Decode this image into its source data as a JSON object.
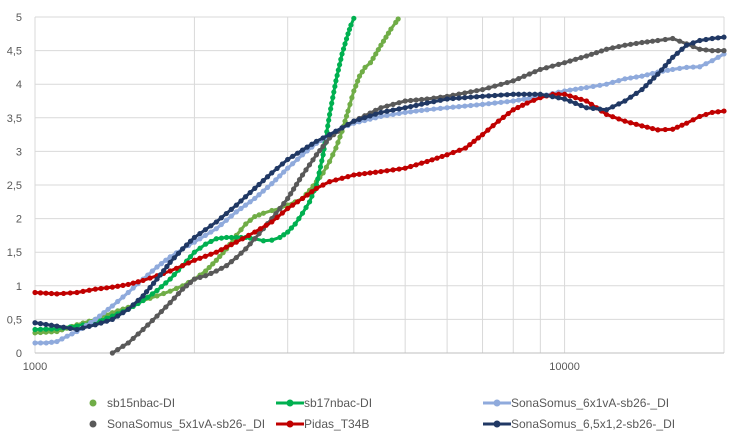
{
  "chart_data": {
    "type": "line",
    "title": "",
    "xlabel": "",
    "ylabel": "",
    "x_scale": "log",
    "xlim": [
      1000,
      20000
    ],
    "ylim": [
      0,
      5
    ],
    "grid": true,
    "legend_position": "bottom",
    "x_tick_labels": [
      {
        "value": 1000,
        "label": "1000"
      },
      {
        "value": 10000,
        "label": "10000"
      }
    ],
    "x_gridlines": [
      1000,
      2000,
      3000,
      4000,
      5000,
      6000,
      7000,
      8000,
      9000,
      10000,
      20000
    ],
    "y_ticks": [
      {
        "value": 0,
        "label": "0"
      },
      {
        "value": 0.5,
        "label": "0,5"
      },
      {
        "value": 1,
        "label": "1"
      },
      {
        "value": 1.5,
        "label": "1,5"
      },
      {
        "value": 2,
        "label": "2"
      },
      {
        "value": 2.5,
        "label": "2,5"
      },
      {
        "value": 3,
        "label": "3"
      },
      {
        "value": 3.5,
        "label": "3,5"
      },
      {
        "value": 4,
        "label": "4"
      },
      {
        "value": 4.5,
        "label": "4,5"
      },
      {
        "value": 5,
        "label": "5"
      }
    ],
    "series": [
      {
        "name": "sb15nbac-DI",
        "color": "#70ad47",
        "marker": "dot",
        "points": [
          [
            1000,
            0.3
          ],
          [
            1100,
            0.32
          ],
          [
            1200,
            0.42
          ],
          [
            1300,
            0.5
          ],
          [
            1400,
            0.6
          ],
          [
            1500,
            0.68
          ],
          [
            1600,
            0.78
          ],
          [
            1700,
            0.85
          ],
          [
            1800,
            0.92
          ],
          [
            1900,
            1.0
          ],
          [
            2000,
            1.1
          ],
          [
            2100,
            1.22
          ],
          [
            2200,
            1.38
          ],
          [
            2300,
            1.55
          ],
          [
            2400,
            1.75
          ],
          [
            2500,
            1.92
          ],
          [
            2600,
            2.03
          ],
          [
            2700,
            2.08
          ],
          [
            2800,
            2.12
          ],
          [
            2900,
            2.15
          ],
          [
            3000,
            2.2
          ],
          [
            3100,
            2.25
          ],
          [
            3200,
            2.3
          ],
          [
            3300,
            2.42
          ],
          [
            3400,
            2.55
          ],
          [
            3500,
            2.68
          ],
          [
            3600,
            2.85
          ],
          [
            3700,
            3.05
          ],
          [
            3800,
            3.3
          ],
          [
            3900,
            3.6
          ],
          [
            4000,
            3.9
          ],
          [
            4100,
            4.12
          ],
          [
            4200,
            4.25
          ],
          [
            4300,
            4.32
          ],
          [
            4400,
            4.45
          ],
          [
            4500,
            4.58
          ],
          [
            4600,
            4.7
          ],
          [
            4700,
            4.82
          ],
          [
            4800,
            4.92
          ],
          [
            4850,
            4.97
          ]
        ]
      },
      {
        "name": "sb17nbac-DI",
        "color": "#00b050",
        "marker": "dot",
        "points": [
          [
            1000,
            0.35
          ],
          [
            1100,
            0.36
          ],
          [
            1200,
            0.4
          ],
          [
            1300,
            0.45
          ],
          [
            1400,
            0.55
          ],
          [
            1500,
            0.65
          ],
          [
            1600,
            0.78
          ],
          [
            1700,
            0.93
          ],
          [
            1800,
            1.1
          ],
          [
            1900,
            1.3
          ],
          [
            2000,
            1.5
          ],
          [
            2100,
            1.62
          ],
          [
            2200,
            1.7
          ],
          [
            2300,
            1.72
          ],
          [
            2400,
            1.72
          ],
          [
            2500,
            1.72
          ],
          [
            2600,
            1.7
          ],
          [
            2700,
            1.67
          ],
          [
            2800,
            1.68
          ],
          [
            2900,
            1.72
          ],
          [
            3000,
            1.8
          ],
          [
            3100,
            1.92
          ],
          [
            3200,
            2.08
          ],
          [
            3300,
            2.25
          ],
          [
            3400,
            2.5
          ],
          [
            3500,
            2.95
          ],
          [
            3600,
            3.55
          ],
          [
            3700,
            4.05
          ],
          [
            3800,
            4.45
          ],
          [
            3900,
            4.75
          ],
          [
            3950,
            4.88
          ],
          [
            4000,
            4.98
          ]
        ]
      },
      {
        "name": "SonaSomus_6x1vA-sb26-_DI",
        "color": "#8faadc",
        "marker": "dot",
        "points": [
          [
            1000,
            0.15
          ],
          [
            1050,
            0.15
          ],
          [
            1100,
            0.17
          ],
          [
            1150,
            0.25
          ],
          [
            1200,
            0.32
          ],
          [
            1300,
            0.5
          ],
          [
            1400,
            0.7
          ],
          [
            1500,
            0.9
          ],
          [
            1600,
            1.1
          ],
          [
            1700,
            1.28
          ],
          [
            1800,
            1.43
          ],
          [
            1900,
            1.55
          ],
          [
            2000,
            1.65
          ],
          [
            2200,
            1.85
          ],
          [
            2400,
            2.1
          ],
          [
            2600,
            2.3
          ],
          [
            2800,
            2.52
          ],
          [
            3000,
            2.75
          ],
          [
            3200,
            2.95
          ],
          [
            3400,
            3.12
          ],
          [
            3600,
            3.25
          ],
          [
            3800,
            3.35
          ],
          [
            4000,
            3.42
          ],
          [
            4500,
            3.52
          ],
          [
            5000,
            3.58
          ],
          [
            5500,
            3.62
          ],
          [
            6000,
            3.65
          ],
          [
            7000,
            3.7
          ],
          [
            8000,
            3.75
          ],
          [
            9000,
            3.82
          ],
          [
            10000,
            3.9
          ],
          [
            11000,
            3.95
          ],
          [
            12000,
            4.0
          ],
          [
            13000,
            4.08
          ],
          [
            14000,
            4.12
          ],
          [
            15000,
            4.18
          ],
          [
            16000,
            4.22
          ],
          [
            17000,
            4.25
          ],
          [
            18000,
            4.26
          ],
          [
            19000,
            4.35
          ],
          [
            20000,
            4.45
          ]
        ]
      },
      {
        "name": "SonaSomus_5x1vA-sb26-_DI",
        "color": "#595959",
        "marker": "dot",
        "points": [
          [
            1400,
            0.0
          ],
          [
            1500,
            0.15
          ],
          [
            1600,
            0.35
          ],
          [
            1700,
            0.55
          ],
          [
            1800,
            0.75
          ],
          [
            1900,
            0.95
          ],
          [
            2000,
            1.1
          ],
          [
            2100,
            1.15
          ],
          [
            2200,
            1.22
          ],
          [
            2300,
            1.3
          ],
          [
            2400,
            1.42
          ],
          [
            2500,
            1.55
          ],
          [
            2600,
            1.7
          ],
          [
            2700,
            1.85
          ],
          [
            2800,
            2.0
          ],
          [
            2900,
            2.15
          ],
          [
            3000,
            2.3
          ],
          [
            3200,
            2.65
          ],
          [
            3400,
            2.95
          ],
          [
            3600,
            3.2
          ],
          [
            3800,
            3.35
          ],
          [
            4000,
            3.45
          ],
          [
            4500,
            3.65
          ],
          [
            5000,
            3.75
          ],
          [
            5500,
            3.78
          ],
          [
            6000,
            3.82
          ],
          [
            7000,
            3.92
          ],
          [
            8000,
            4.05
          ],
          [
            9000,
            4.22
          ],
          [
            10000,
            4.32
          ],
          [
            11000,
            4.42
          ],
          [
            12000,
            4.52
          ],
          [
            13000,
            4.58
          ],
          [
            14000,
            4.62
          ],
          [
            15000,
            4.65
          ],
          [
            16000,
            4.68
          ],
          [
            17000,
            4.6
          ],
          [
            18000,
            4.52
          ],
          [
            19000,
            4.5
          ],
          [
            20000,
            4.5
          ]
        ]
      },
      {
        "name": "Pidas_T34B",
        "color": "#c00000",
        "marker": "dot",
        "points": [
          [
            1000,
            0.9
          ],
          [
            1100,
            0.88
          ],
          [
            1200,
            0.9
          ],
          [
            1300,
            0.95
          ],
          [
            1400,
            0.98
          ],
          [
            1500,
            1.02
          ],
          [
            1600,
            1.08
          ],
          [
            1700,
            1.15
          ],
          [
            1800,
            1.22
          ],
          [
            1900,
            1.3
          ],
          [
            2000,
            1.38
          ],
          [
            2200,
            1.5
          ],
          [
            2400,
            1.65
          ],
          [
            2600,
            1.8
          ],
          [
            2800,
            1.95
          ],
          [
            3000,
            2.15
          ],
          [
            3200,
            2.3
          ],
          [
            3400,
            2.45
          ],
          [
            3600,
            2.55
          ],
          [
            3800,
            2.6
          ],
          [
            4000,
            2.65
          ],
          [
            4500,
            2.7
          ],
          [
            5000,
            2.75
          ],
          [
            5500,
            2.85
          ],
          [
            6000,
            2.95
          ],
          [
            6500,
            3.05
          ],
          [
            7000,
            3.25
          ],
          [
            7500,
            3.45
          ],
          [
            8000,
            3.62
          ],
          [
            8500,
            3.72
          ],
          [
            9000,
            3.8
          ],
          [
            9500,
            3.85
          ],
          [
            10000,
            3.85
          ],
          [
            11000,
            3.75
          ],
          [
            12000,
            3.55
          ],
          [
            13000,
            3.45
          ],
          [
            14000,
            3.38
          ],
          [
            15000,
            3.32
          ],
          [
            16000,
            3.33
          ],
          [
            17000,
            3.42
          ],
          [
            18000,
            3.52
          ],
          [
            19000,
            3.58
          ],
          [
            20000,
            3.6
          ]
        ]
      },
      {
        "name": "SonaSomus_6,5x1,2-sb26-_DI",
        "color": "#203864",
        "marker": "dot",
        "points": [
          [
            1000,
            0.45
          ],
          [
            1100,
            0.4
          ],
          [
            1200,
            0.35
          ],
          [
            1300,
            0.42
          ],
          [
            1400,
            0.5
          ],
          [
            1500,
            0.65
          ],
          [
            1600,
            0.85
          ],
          [
            1700,
            1.1
          ],
          [
            1800,
            1.35
          ],
          [
            1900,
            1.55
          ],
          [
            2000,
            1.72
          ],
          [
            2200,
            1.95
          ],
          [
            2400,
            2.2
          ],
          [
            2600,
            2.45
          ],
          [
            2800,
            2.68
          ],
          [
            3000,
            2.88
          ],
          [
            3200,
            3.02
          ],
          [
            3400,
            3.15
          ],
          [
            3600,
            3.25
          ],
          [
            3800,
            3.35
          ],
          [
            4000,
            3.45
          ],
          [
            4500,
            3.58
          ],
          [
            5000,
            3.65
          ],
          [
            5500,
            3.72
          ],
          [
            6000,
            3.78
          ],
          [
            7000,
            3.82
          ],
          [
            8000,
            3.85
          ],
          [
            9000,
            3.85
          ],
          [
            10000,
            3.78
          ],
          [
            11000,
            3.65
          ],
          [
            12000,
            3.62
          ],
          [
            13000,
            3.75
          ],
          [
            14000,
            3.92
          ],
          [
            15000,
            4.15
          ],
          [
            16000,
            4.4
          ],
          [
            17000,
            4.58
          ],
          [
            18000,
            4.65
          ],
          [
            19000,
            4.68
          ],
          [
            20000,
            4.7
          ]
        ]
      }
    ]
  }
}
